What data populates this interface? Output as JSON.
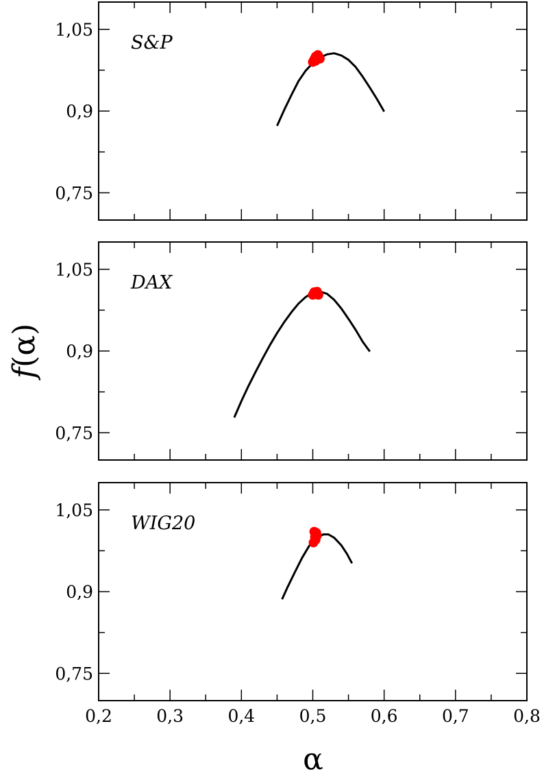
{
  "chart_data": {
    "type": "line",
    "xlabel": "α",
    "ylabel_prefix": "f",
    "ylabel_arg": "(α)",
    "xlim": [
      0.2,
      0.8
    ],
    "ylim": [
      0.7,
      1.1
    ],
    "x_ticks": [
      0.2,
      0.3,
      0.4,
      0.5,
      0.6,
      0.7,
      0.8
    ],
    "x_tick_labels": [
      "0,2",
      "0,3",
      "0,4",
      "0,5",
      "0,6",
      "0,7",
      "0,8"
    ],
    "y_ticks": [
      0.75,
      0.9,
      1.05
    ],
    "y_tick_labels": [
      "0,75",
      "0,9",
      "1,05"
    ],
    "grid": false,
    "line_color": "#000000",
    "marker_color": "#ff0000",
    "panels": [
      {
        "label": "S&P",
        "series": [
          {
            "type": "line",
            "x": [
              0.45,
              0.46,
              0.47,
              0.48,
              0.49,
              0.5,
              0.51,
              0.52,
              0.53,
              0.54,
              0.55,
              0.56,
              0.57,
              0.58,
              0.59,
              0.6
            ],
            "y": [
              0.873,
              0.902,
              0.929,
              0.955,
              0.974,
              0.988,
              0.998,
              1.004,
              1.006,
              1.002,
              0.994,
              0.981,
              0.963,
              0.943,
              0.922,
              0.899
            ]
          },
          {
            "type": "scatter",
            "x": [
              0.5,
              0.502,
              0.504,
              0.506,
              0.508,
              0.51,
              0.504,
              0.507
            ],
            "y": [
              0.99,
              0.995,
              1.0,
              0.997,
              1.001,
              0.996,
              0.992,
              1.003
            ]
          }
        ]
      },
      {
        "label": "DAX",
        "series": [
          {
            "type": "line",
            "x": [
              0.39,
              0.4,
              0.41,
              0.42,
              0.43,
              0.44,
              0.45,
              0.46,
              0.47,
              0.48,
              0.49,
              0.5,
              0.51,
              0.52,
              0.53,
              0.54,
              0.55,
              0.56,
              0.57,
              0.58
            ],
            "y": [
              0.778,
              0.808,
              0.836,
              0.862,
              0.887,
              0.911,
              0.933,
              0.953,
              0.971,
              0.987,
              0.999,
              1.007,
              1.009,
              1.005,
              0.994,
              0.978,
              0.959,
              0.939,
              0.917,
              0.899
            ]
          },
          {
            "type": "scatter",
            "x": [
              0.5,
              0.502,
              0.504,
              0.506,
              0.508,
              0.503
            ],
            "y": [
              1.003,
              1.008,
              1.004,
              1.009,
              1.003,
              1.006
            ]
          }
        ]
      },
      {
        "label": "WIG20",
        "series": [
          {
            "type": "line",
            "x": [
              0.457,
              0.465,
              0.475,
              0.485,
              0.495,
              0.505,
              0.515,
              0.522,
              0.53,
              0.54,
              0.548,
              0.555
            ],
            "y": [
              0.886,
              0.909,
              0.936,
              0.962,
              0.984,
              0.999,
              1.005,
              1.005,
              0.999,
              0.985,
              0.969,
              0.952
            ]
          },
          {
            "type": "scatter",
            "x": [
              0.501,
              0.503,
              0.505,
              0.502,
              0.504,
              0.506
            ],
            "y": [
              0.99,
              1.0,
              1.008,
              1.01,
              0.995,
              1.003
            ]
          }
        ]
      }
    ]
  }
}
